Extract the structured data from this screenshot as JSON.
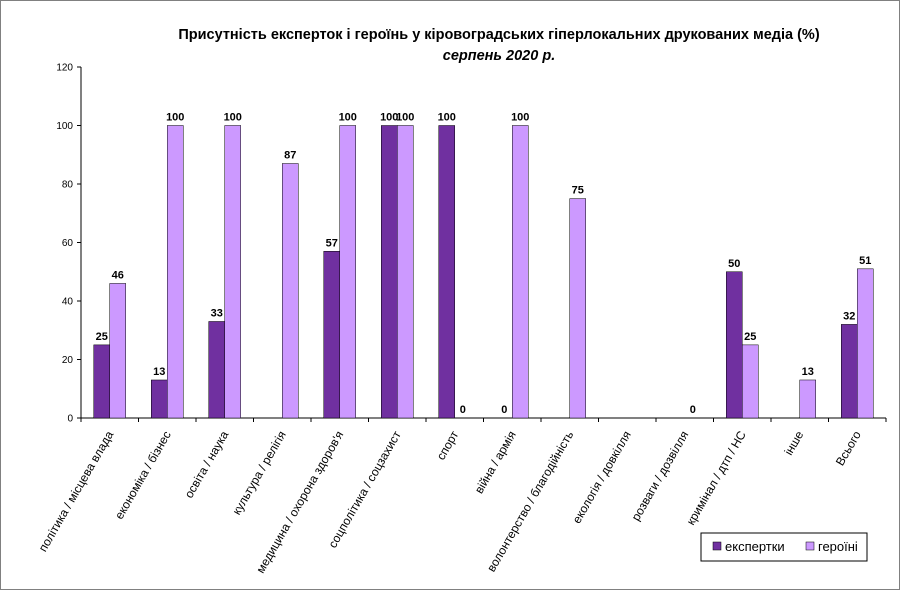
{
  "chart_data": {
    "type": "bar",
    "title": "Присутність експерток і героїнь у кіровоградських гіперлокальних друкованих медіа (%)",
    "subtitle": "серпень 2020 р.",
    "categories": [
      "політика / місцева влада",
      "економіка / бізнес",
      "освіта / наука",
      "культура / релігія",
      "медицина / охорона здоров'я",
      "соцполітика / соцзахист",
      "спорт",
      "війна / армія",
      "волонтерство / благодійність",
      "екологія / довкілля",
      "розваги / дозвілля",
      "кримінал / дтп / НС",
      "інше",
      "Всього"
    ],
    "series": [
      {
        "name": "експертки",
        "color": "#7030A0",
        "values": [
          25,
          13,
          33,
          null,
          57,
          100,
          100,
          0,
          null,
          null,
          null,
          50,
          null,
          32
        ],
        "labels": [
          "25",
          "13",
          "33",
          "",
          "57",
          "100",
          "100",
          "0",
          "",
          "",
          "",
          "50",
          "",
          "32"
        ]
      },
      {
        "name": "героїні",
        "color": "#CC99FF",
        "values": [
          46,
          100,
          100,
          87,
          100,
          100,
          0,
          100,
          75,
          null,
          0,
          25,
          13,
          51
        ],
        "labels": [
          "46",
          "100",
          "100",
          "87",
          "100",
          "100",
          "0",
          "100",
          "75",
          "",
          "0",
          "25",
          "13",
          "51"
        ]
      }
    ],
    "ylim": [
      0,
      120
    ],
    "yticks": [
      0,
      20,
      40,
      60,
      80,
      100,
      120
    ],
    "grid": false,
    "legend_position": "bottom-right"
  }
}
